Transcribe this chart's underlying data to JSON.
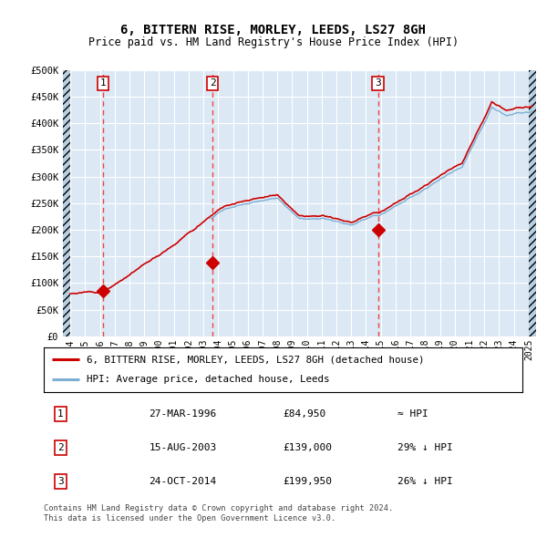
{
  "title": "6, BITTERN RISE, MORLEY, LEEDS, LS27 8GH",
  "subtitle": "Price paid vs. HM Land Registry's House Price Index (HPI)",
  "bg_color": "#dce9f5",
  "red_line_color": "#cc0000",
  "blue_line_color": "#7bafd4",
  "hatch_color": "#b8cfe0",
  "dashed_line_color": "#ee4444",
  "sale_marker_color": "#cc0000",
  "sale_points": [
    {
      "date": 1996.23,
      "value": 84950,
      "label": "1"
    },
    {
      "date": 2003.62,
      "value": 139000,
      "label": "2"
    },
    {
      "date": 2014.81,
      "value": 199950,
      "label": "3"
    }
  ],
  "vline_dates": [
    1996.23,
    2003.62,
    2014.81
  ],
  "ylabel_ticks": [
    "£0",
    "£50K",
    "£100K",
    "£150K",
    "£200K",
    "£250K",
    "£300K",
    "£350K",
    "£400K",
    "£450K",
    "£500K"
  ],
  "ytick_values": [
    0,
    50000,
    100000,
    150000,
    200000,
    250000,
    300000,
    350000,
    400000,
    450000,
    500000
  ],
  "legend_line1": "6, BITTERN RISE, MORLEY, LEEDS, LS27 8GH (detached house)",
  "legend_line2": "HPI: Average price, detached house, Leeds",
  "table_rows": [
    [
      "1",
      "27-MAR-1996",
      "£84,950",
      "≈ HPI"
    ],
    [
      "2",
      "15-AUG-2003",
      "£139,000",
      "29% ↓ HPI"
    ],
    [
      "3",
      "24-OCT-2014",
      "£199,950",
      "26% ↓ HPI"
    ]
  ],
  "footer": "Contains HM Land Registry data © Crown copyright and database right 2024.\nThis data is licensed under the Open Government Licence v3.0.",
  "xlim": [
    1993.5,
    2025.5
  ],
  "ylim": [
    0,
    500000
  ]
}
